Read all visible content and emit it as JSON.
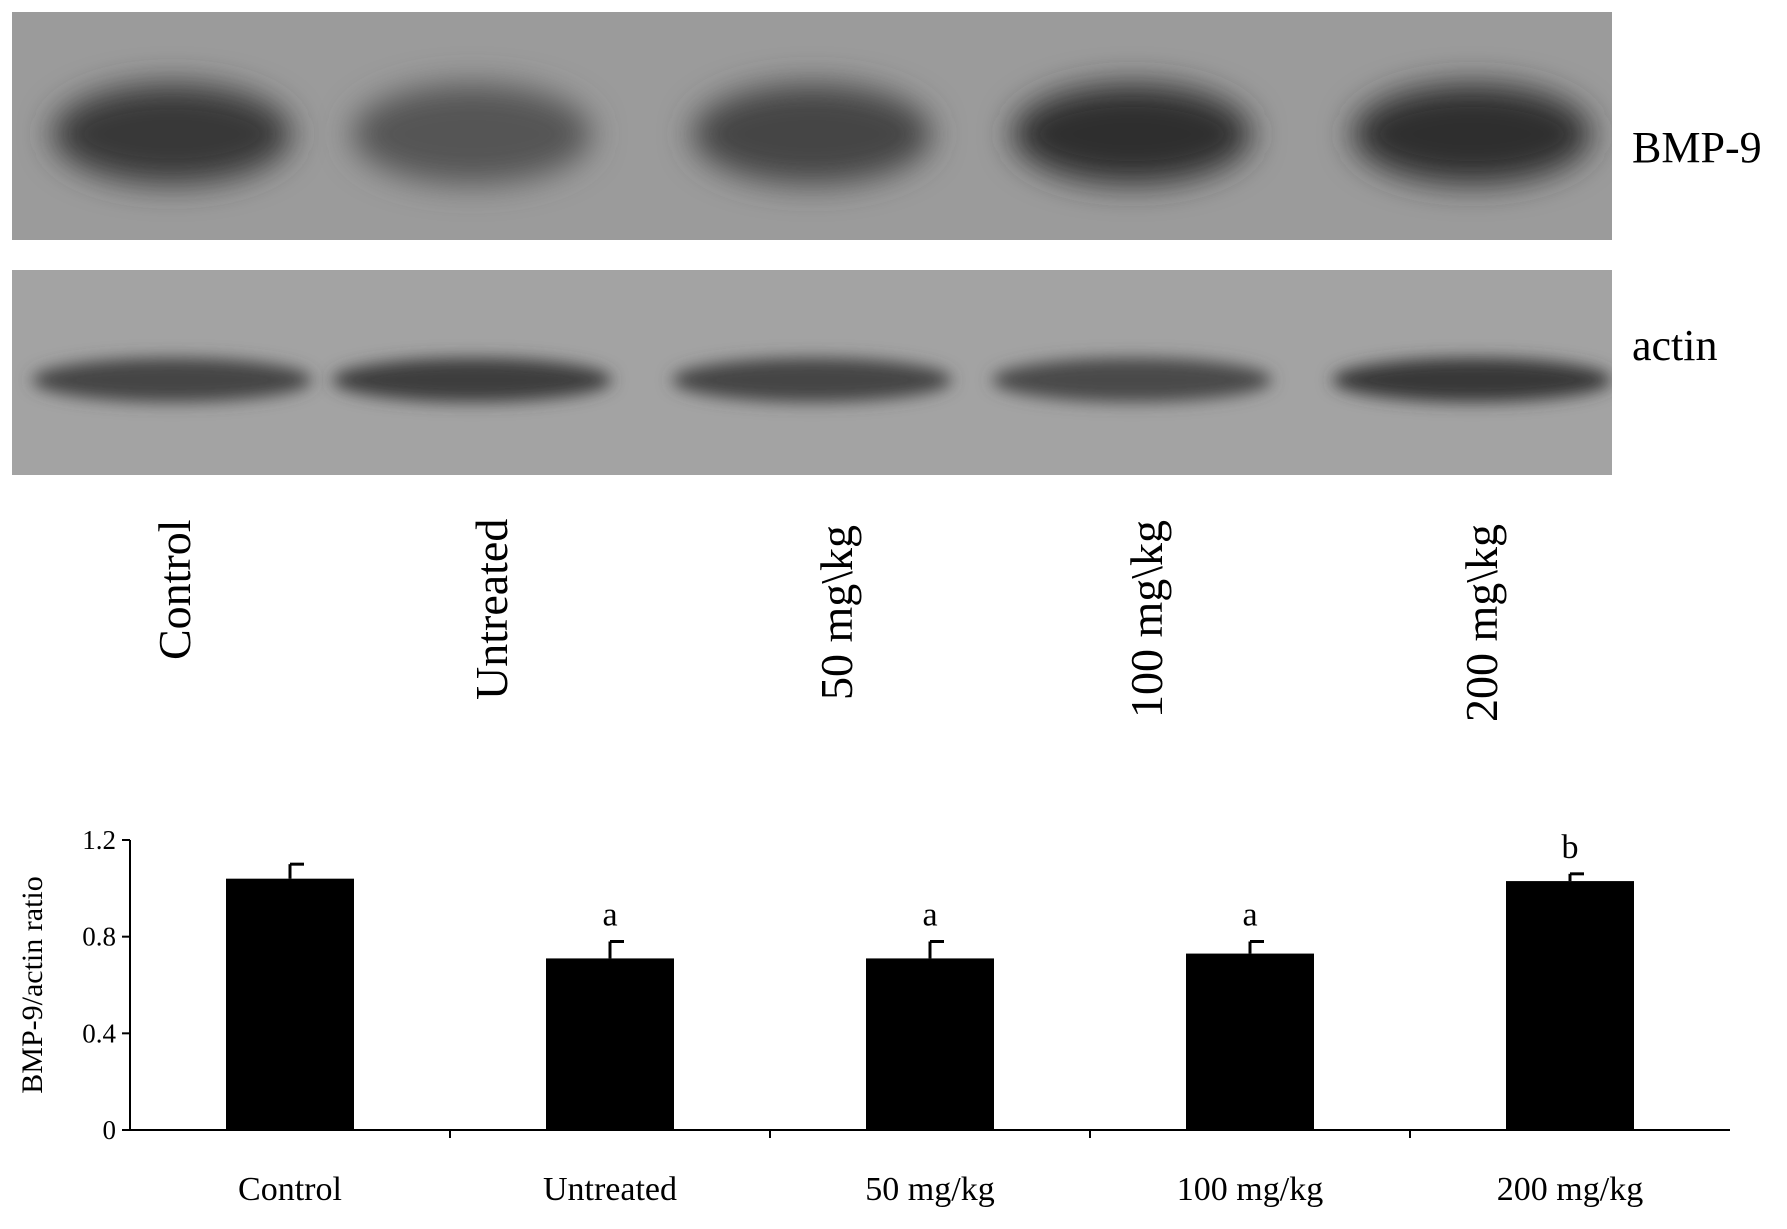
{
  "blot": {
    "bands": [
      {
        "name": "BMP-9",
        "intensities": [
          0.85,
          0.6,
          0.75,
          0.95,
          0.95
        ]
      },
      {
        "name": "actin",
        "intensities": [
          0.75,
          0.8,
          0.75,
          0.7,
          0.85
        ]
      }
    ],
    "lanes": [
      "Control",
      "Untreated",
      "50 mg\\kg",
      "100 mg\\kg",
      "200 mg\\kg"
    ]
  },
  "chart_data": {
    "type": "bar",
    "categories": [
      "Control",
      "Untreated",
      "50 mg/kg",
      "100 mg/kg",
      "200 mg/kg"
    ],
    "values": [
      1.04,
      0.71,
      0.71,
      0.73,
      1.03
    ],
    "errors": [
      0.06,
      0.07,
      0.07,
      0.05,
      0.03
    ],
    "annotations": [
      "",
      "a",
      "a",
      "a",
      "b"
    ],
    "ylabel": "BMP-9/actin ratio",
    "xlabel": "",
    "ylim": [
      0,
      1.2
    ],
    "yticks": [
      0,
      0.4,
      0.8,
      1.2
    ],
    "ytick_labels": [
      "0",
      "0.4",
      "0.8",
      "1.2"
    ],
    "grid": false,
    "colors": {
      "bar": "#000000"
    }
  }
}
